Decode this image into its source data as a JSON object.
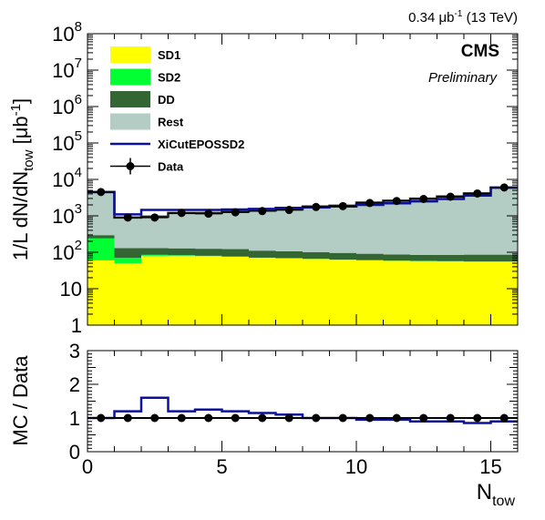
{
  "header": {
    "lumi_value": "0.34 μb",
    "lumi_exp": "-1",
    "lumi_energy": " (13 TeV)",
    "experiment": "CMS",
    "status": "Preliminary"
  },
  "colors": {
    "sd1": "#ffff00",
    "sd2": "#00ff33",
    "dd": "#336633",
    "rest": "#b3cdc4",
    "eposSD2": "#0b119a",
    "data": "#000000"
  },
  "chart_data": [
    {
      "type": "area",
      "stacked": true,
      "y_scale": "log",
      "ylim": [
        1,
        100000000
      ],
      "xlim": [
        0,
        16
      ],
      "ylabel_main": "1/L dN/dN",
      "ylabel_sub": "tow",
      "ylabel_unit_pre": " [μb",
      "ylabel_unit_exp": "-1",
      "ylabel_unit_post": "]",
      "y_tick_labels": [
        "1",
        "10",
        "10",
        "10",
        "10",
        "10",
        "10",
        "10",
        "10"
      ],
      "y_tick_exps": [
        "",
        "",
        "2",
        "3",
        "4",
        "5",
        "6",
        "7",
        "8"
      ],
      "bin_edges": [
        0,
        1,
        2,
        3,
        4,
        5,
        6,
        7,
        8,
        9,
        10,
        11,
        12,
        13,
        14,
        15,
        16
      ],
      "legend": {
        "placement": "top-left",
        "entries": [
          {
            "key": "sd1",
            "label": "SD1",
            "kind": "fill"
          },
          {
            "key": "sd2",
            "label": "SD2",
            "kind": "fill"
          },
          {
            "key": "dd",
            "label": "DD",
            "kind": "fill"
          },
          {
            "key": "rest",
            "label": "Rest",
            "kind": "fill"
          },
          {
            "key": "eposSD2",
            "label": "XiCutEPOSSD2",
            "kind": "line"
          },
          {
            "key": "data",
            "label": "Data",
            "kind": "marker"
          }
        ]
      },
      "series": [
        {
          "key": "sd1",
          "name": "SD1",
          "values": [
            60,
            50,
            80,
            80,
            78,
            75,
            70,
            68,
            65,
            62,
            60,
            58,
            57,
            56,
            55,
            55
          ]
        },
        {
          "key": "sd2",
          "name": "SD2",
          "values": [
            180,
            20,
            5,
            3,
            2,
            2,
            1,
            1,
            1,
            1,
            1,
            1,
            1,
            1,
            1,
            1
          ]
        },
        {
          "key": "dd",
          "name": "DD",
          "values": [
            55,
            60,
            45,
            45,
            45,
            45,
            40,
            38,
            35,
            33,
            30,
            28,
            27,
            28,
            30,
            30
          ]
        },
        {
          "key": "rest",
          "name": "Rest",
          "values": [
            4205,
            770,
            820,
            1070,
            1075,
            1180,
            1290,
            1390,
            1700,
            1800,
            2210,
            2510,
            2880,
            3310,
            4040,
            5910
          ]
        },
        {
          "key": "eposSD2",
          "name": "XiCutEPOSSD2",
          "style": "line",
          "values": [
            4500,
            1100,
            1450,
            1450,
            1450,
            1500,
            1550,
            1650,
            1700,
            1800,
            2000,
            2200,
            2500,
            2900,
            3600,
            5900
          ]
        },
        {
          "key": "data",
          "name": "Data",
          "style": "points",
          "x": [
            0.5,
            1.5,
            2.5,
            3.5,
            4.5,
            5.5,
            6.5,
            7.5,
            8.5,
            9.5,
            10.5,
            11.5,
            12.5,
            13.5,
            14.5,
            15.5
          ],
          "values": [
            4500,
            900,
            900,
            1200,
            1150,
            1250,
            1350,
            1450,
            1750,
            1850,
            2250,
            2550,
            2900,
            3350,
            4100,
            6000
          ]
        }
      ]
    },
    {
      "type": "line",
      "ylim": [
        0,
        3
      ],
      "xlim": [
        0,
        16
      ],
      "ylabel": "MC / Data",
      "xlabel_main": "N",
      "xlabel_sub": "tow",
      "x_tick_labels": [
        "0",
        "5",
        "10",
        "15"
      ],
      "x_tick_values": [
        0,
        5,
        10,
        15
      ],
      "y_tick_labels": [
        "0",
        "1",
        "2",
        "3"
      ],
      "y_tick_values": [
        0,
        1,
        2,
        3
      ],
      "bin_edges": [
        0,
        1,
        2,
        3,
        4,
        5,
        6,
        7,
        8,
        9,
        10,
        11,
        12,
        13,
        14,
        15,
        16
      ],
      "series": [
        {
          "key": "eposSD2",
          "name": "XiCutEPOSSD2",
          "style": "step",
          "values": [
            1.0,
            1.2,
            1.6,
            1.2,
            1.25,
            1.2,
            1.15,
            1.1,
            1.0,
            1.0,
            0.95,
            0.95,
            0.9,
            0.9,
            0.85,
            0.9
          ]
        },
        {
          "key": "data",
          "name": "Data",
          "style": "points",
          "x": [
            0.5,
            1.5,
            2.5,
            3.5,
            4.5,
            5.5,
            6.5,
            7.5,
            8.5,
            9.5,
            10.5,
            11.5,
            12.5,
            13.5,
            14.5,
            15.5
          ],
          "values": [
            1,
            1,
            1,
            1,
            1,
            1,
            1,
            1,
            1,
            1,
            1,
            1,
            1,
            1,
            1,
            1
          ]
        }
      ]
    }
  ]
}
